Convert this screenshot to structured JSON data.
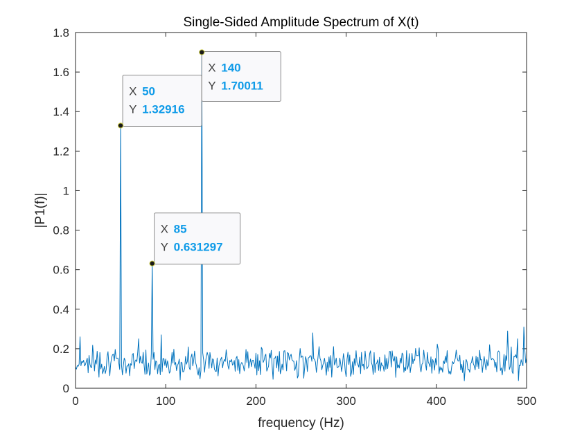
{
  "chart_data": {
    "type": "line",
    "title": "Single-Sided Amplitude Spectrum of X(t)",
    "xlabel": "frequency (Hz)",
    "ylabel": "|P1(f)|",
    "xlim": [
      0,
      500
    ],
    "ylim": [
      0,
      1.8
    ],
    "xticks": [
      0,
      100,
      200,
      300,
      400,
      500
    ],
    "yticks": [
      0,
      0.2,
      0.4,
      0.6,
      0.8,
      1,
      1.2,
      1.4,
      1.6,
      1.8
    ],
    "xtick_labels": [
      "0",
      "100",
      "200",
      "300",
      "400",
      "500"
    ],
    "ytick_labels": [
      "0",
      "0.2",
      "0.4",
      "0.6",
      "0.8",
      "1",
      "1.2",
      "1.4",
      "1.6",
      "1.8"
    ],
    "grid": false,
    "box": true,
    "line_color": "#0072bd",
    "sample_spacing": 1,
    "peaks": [
      {
        "x": 50,
        "y": 1.32916
      },
      {
        "x": 85,
        "y": 0.631297
      },
      {
        "x": 140,
        "y": 1.70011
      }
    ],
    "datatips": [
      {
        "x_key": "X",
        "x_value": "50",
        "y_key": "Y",
        "y_value": "1.32916"
      },
      {
        "x_key": "X",
        "x_value": "85",
        "y_key": "Y",
        "y_value": "0.631297"
      },
      {
        "x_key": "X",
        "x_value": "140",
        "y_key": "Y",
        "y_value": "1.70011"
      }
    ],
    "noise_seed": 7,
    "noise_level": 0.11,
    "noise_spread": 0.085,
    "series": [
      {
        "values_description": "noise floor 0.02-0.32 with peaks",
        "spike_points": [
          [
            497,
            0.31
          ],
          [
            479,
            0.29
          ],
          [
            263,
            0.28
          ],
          [
            490,
            0.25
          ],
          [
            5,
            0.26
          ],
          [
            70,
            0.25
          ],
          [
            95,
            0.27
          ]
        ]
      }
    ]
  }
}
